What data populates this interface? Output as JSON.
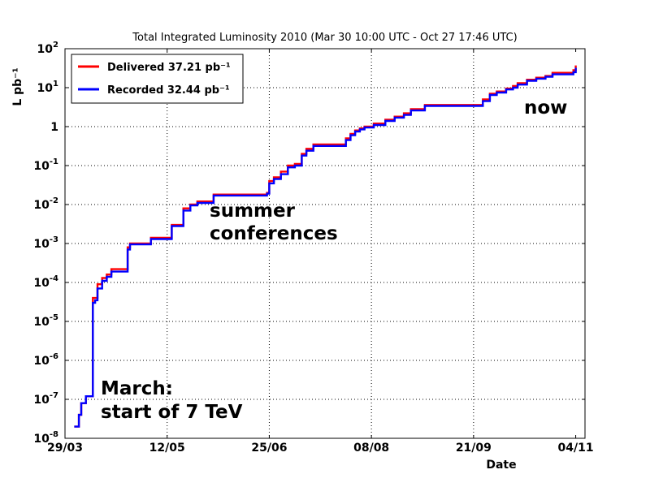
{
  "chart_data": {
    "type": "line",
    "title": "Total Integrated Luminosity 2010 (Mar 30 10:00 UTC - Oct 27 17:46 UTC)",
    "xlabel": "Date",
    "ylabel": "L pb⁻¹",
    "y_scale": "log",
    "ylim": [
      1e-08,
      100
    ],
    "xlim": [
      "2010-03-29",
      "2010-11-08"
    ],
    "grid": true,
    "grid_style": "dotted",
    "legend_position": "top-left",
    "x_ticks": [
      "29/03",
      "12/05",
      "25/06",
      "08/08",
      "21/09",
      "04/11"
    ],
    "y_ticks": [
      {
        "base": "10",
        "exp": "-8"
      },
      {
        "base": "10",
        "exp": "-7"
      },
      {
        "base": "10",
        "exp": "-6"
      },
      {
        "base": "10",
        "exp": "-5"
      },
      {
        "base": "10",
        "exp": "-4"
      },
      {
        "base": "10",
        "exp": "-3"
      },
      {
        "base": "10",
        "exp": "-2"
      },
      {
        "base": "10",
        "exp": "-1"
      },
      {
        "base": "1",
        "exp": "0"
      },
      {
        "base": "10",
        "exp": "1"
      },
      {
        "base": "10",
        "exp": "2"
      }
    ],
    "annotations": [
      {
        "lines": [
          "March:",
          "start of 7 TeV"
        ],
        "anchor": "bottom-left"
      },
      {
        "lines": [
          "summer",
          "conferences"
        ],
        "anchor": "middle-left"
      },
      {
        "lines": [
          "now"
        ],
        "anchor": "top-right"
      }
    ],
    "series": [
      {
        "name": "Delivered 37.21 pb⁻¹",
        "color": "#ff0000",
        "x": [
          "2010-04-02",
          "2010-04-04",
          "2010-04-05",
          "2010-04-07",
          "2010-04-08",
          "2010-04-09",
          "2010-04-10",
          "2010-04-11",
          "2010-04-12",
          "2010-04-14",
          "2010-04-16",
          "2010-04-18",
          "2010-04-22",
          "2010-04-25",
          "2010-04-26",
          "2010-04-28",
          "2010-05-05",
          "2010-05-10",
          "2010-05-14",
          "2010-05-17",
          "2010-05-19",
          "2010-05-22",
          "2010-05-25",
          "2010-06-01",
          "2010-06-24",
          "2010-06-25",
          "2010-06-27",
          "2010-06-30",
          "2010-07-03",
          "2010-07-06",
          "2010-07-08",
          "2010-07-09",
          "2010-07-11",
          "2010-07-14",
          "2010-07-20",
          "2010-07-28",
          "2010-07-30",
          "2010-08-01",
          "2010-08-03",
          "2010-08-05",
          "2010-08-07",
          "2010-08-09",
          "2010-08-14",
          "2010-08-18",
          "2010-08-22",
          "2010-08-25",
          "2010-08-31",
          "2010-09-15",
          "2010-09-22",
          "2010-09-25",
          "2010-09-28",
          "2010-10-01",
          "2010-10-05",
          "2010-10-08",
          "2010-10-10",
          "2010-10-14",
          "2010-10-18",
          "2010-10-22",
          "2010-10-25",
          "2010-10-28",
          "2010-11-02",
          "2010-11-03",
          "2010-11-04"
        ],
        "values": [
          2e-08,
          4e-08,
          8e-08,
          1.2e-07,
          1.2e-07,
          1.2e-07,
          4e-05,
          4e-05,
          9e-05,
          0.00013,
          0.00016,
          0.00022,
          0.00022,
          0.0008,
          0.001,
          0.001,
          0.0014,
          0.0014,
          0.003,
          0.003,
          0.008,
          0.01,
          0.012,
          0.018,
          0.02,
          0.04,
          0.05,
          0.07,
          0.1,
          0.11,
          0.11,
          0.2,
          0.27,
          0.35,
          0.35,
          0.5,
          0.65,
          0.8,
          0.9,
          1.0,
          1.0,
          1.2,
          1.5,
          1.8,
          2.2,
          2.8,
          3.6,
          3.6,
          3.6,
          5,
          7,
          8,
          9.5,
          11,
          13,
          16,
          18,
          20,
          24,
          24,
          24,
          28,
          37.21
        ]
      },
      {
        "name": "Recorded 32.44 pb⁻¹",
        "color": "#0000ff",
        "x": [
          "2010-04-02",
          "2010-04-04",
          "2010-04-05",
          "2010-04-07",
          "2010-04-08",
          "2010-04-09",
          "2010-04-10",
          "2010-04-11",
          "2010-04-12",
          "2010-04-14",
          "2010-04-16",
          "2010-04-18",
          "2010-04-22",
          "2010-04-25",
          "2010-04-26",
          "2010-04-28",
          "2010-05-05",
          "2010-05-10",
          "2010-05-14",
          "2010-05-17",
          "2010-05-19",
          "2010-05-22",
          "2010-05-25",
          "2010-06-01",
          "2010-06-24",
          "2010-06-25",
          "2010-06-27",
          "2010-06-30",
          "2010-07-03",
          "2010-07-06",
          "2010-07-08",
          "2010-07-09",
          "2010-07-11",
          "2010-07-14",
          "2010-07-20",
          "2010-07-28",
          "2010-07-30",
          "2010-08-01",
          "2010-08-03",
          "2010-08-05",
          "2010-08-07",
          "2010-08-09",
          "2010-08-14",
          "2010-08-18",
          "2010-08-22",
          "2010-08-25",
          "2010-08-31",
          "2010-09-15",
          "2010-09-22",
          "2010-09-25",
          "2010-09-28",
          "2010-10-01",
          "2010-10-05",
          "2010-10-08",
          "2010-10-10",
          "2010-10-14",
          "2010-10-18",
          "2010-10-22",
          "2010-10-25",
          "2010-10-28",
          "2010-11-02",
          "2010-11-03",
          "2010-11-04"
        ],
        "values": [
          2e-08,
          4e-08,
          8e-08,
          1.2e-07,
          1.2e-07,
          1.2e-07,
          3e-05,
          3.5e-05,
          7e-05,
          0.00011,
          0.00014,
          0.00019,
          0.00019,
          0.0007,
          0.00095,
          0.00095,
          0.0013,
          0.0013,
          0.0028,
          0.0028,
          0.007,
          0.0095,
          0.011,
          0.017,
          0.019,
          0.035,
          0.045,
          0.06,
          0.09,
          0.1,
          0.1,
          0.18,
          0.24,
          0.32,
          0.32,
          0.45,
          0.6,
          0.75,
          0.85,
          0.95,
          0.95,
          1.1,
          1.4,
          1.7,
          2.0,
          2.6,
          3.4,
          3.4,
          3.4,
          4.5,
          6.5,
          7.5,
          9,
          10,
          12,
          15,
          17,
          19,
          22,
          22,
          22,
          25,
          32.44
        ]
      }
    ]
  }
}
